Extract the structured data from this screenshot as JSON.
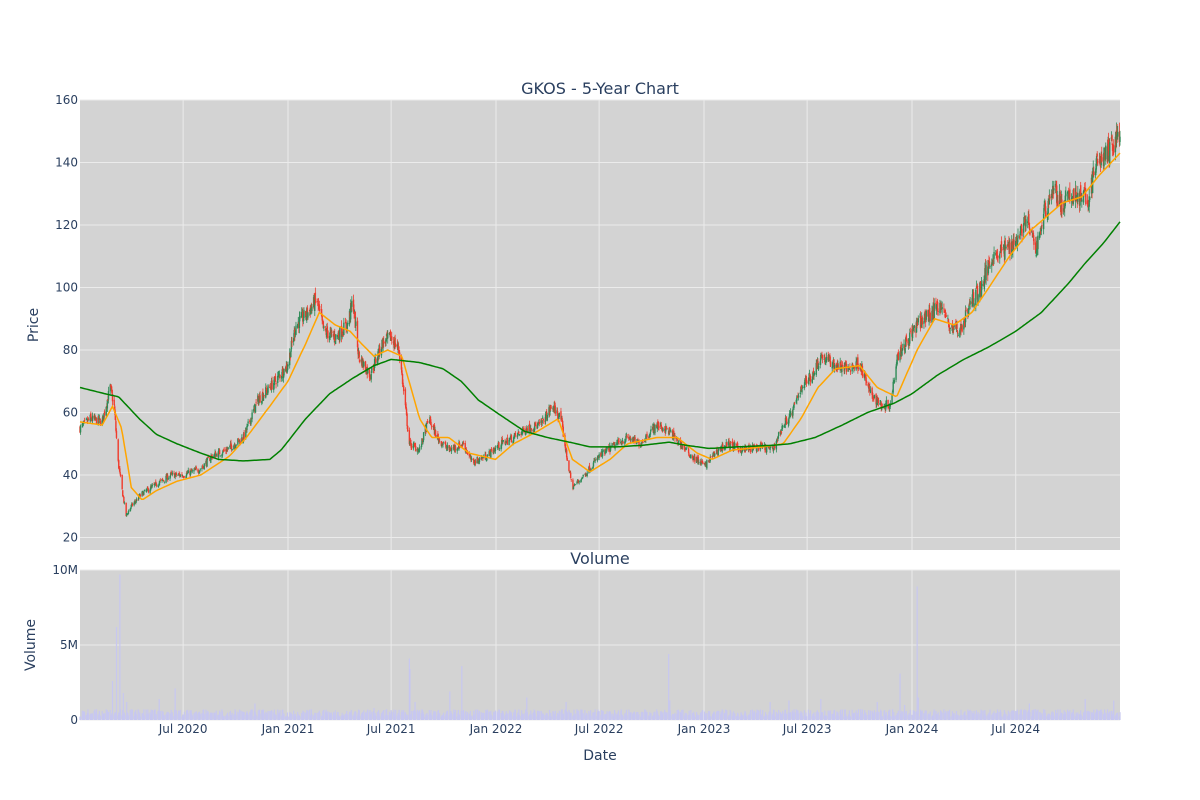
{
  "chart_data": [
    {
      "type": "candlestick",
      "title": "GKOS - 5-Year Chart",
      "ylabel": "Price",
      "ylim": [
        16,
        160
      ],
      "y_ticks": [
        20,
        40,
        60,
        80,
        100,
        120,
        140,
        160
      ],
      "xlim": [
        "2020-01-02",
        "2024-12-31"
      ],
      "grid": true,
      "plot_background": "#d3d3d3",
      "colors": {
        "up": "#2e8b57",
        "down": "#ef3b2c",
        "ma_short": "#ffa500",
        "ma_long": "#008000"
      },
      "close_anchors": [
        [
          "2020-01-02",
          55
        ],
        [
          "2020-01-20",
          58
        ],
        [
          "2020-02-10",
          57
        ],
        [
          "2020-02-24",
          68
        ],
        [
          "2020-03-02",
          62
        ],
        [
          "2020-03-09",
          44
        ],
        [
          "2020-03-16",
          35
        ],
        [
          "2020-03-23",
          27
        ],
        [
          "2020-04-01",
          30
        ],
        [
          "2020-04-20",
          34
        ],
        [
          "2020-05-15",
          37
        ],
        [
          "2020-06-10",
          40
        ],
        [
          "2020-07-01",
          40
        ],
        [
          "2020-08-01",
          42
        ],
        [
          "2020-08-20",
          46
        ],
        [
          "2020-09-15",
          48
        ],
        [
          "2020-10-15",
          52
        ],
        [
          "2020-11-09",
          64
        ],
        [
          "2020-11-30",
          68
        ],
        [
          "2020-12-31",
          75
        ],
        [
          "2021-01-15",
          88
        ],
        [
          "2021-02-05",
          92
        ],
        [
          "2021-02-20",
          96
        ],
        [
          "2021-03-05",
          86
        ],
        [
          "2021-03-25",
          84
        ],
        [
          "2021-04-15",
          88
        ],
        [
          "2021-04-25",
          96
        ],
        [
          "2021-05-05",
          78
        ],
        [
          "2021-05-25",
          72
        ],
        [
          "2021-06-15",
          82
        ],
        [
          "2021-06-30",
          84
        ],
        [
          "2021-07-15",
          80
        ],
        [
          "2021-08-02",
          50
        ],
        [
          "2021-08-20",
          48
        ],
        [
          "2021-09-05",
          58
        ],
        [
          "2021-09-20",
          52
        ],
        [
          "2021-10-10",
          48
        ],
        [
          "2021-11-05",
          50
        ],
        [
          "2021-11-20",
          44
        ],
        [
          "2021-12-15",
          46
        ],
        [
          "2022-01-10",
          50
        ],
        [
          "2022-02-01",
          52
        ],
        [
          "2022-02-25",
          55
        ],
        [
          "2022-03-20",
          56
        ],
        [
          "2022-04-10",
          62
        ],
        [
          "2022-04-25",
          58
        ],
        [
          "2022-05-05",
          46
        ],
        [
          "2022-05-15",
          36
        ],
        [
          "2022-06-05",
          40
        ],
        [
          "2022-07-01",
          46
        ],
        [
          "2022-08-01",
          50
        ],
        [
          "2022-08-20",
          52
        ],
        [
          "2022-09-10",
          50
        ],
        [
          "2022-10-10",
          56
        ],
        [
          "2022-11-01",
          54
        ],
        [
          "2022-11-20",
          50
        ],
        [
          "2022-12-10",
          46
        ],
        [
          "2023-01-03",
          43
        ],
        [
          "2023-01-20",
          47
        ],
        [
          "2023-02-10",
          50
        ],
        [
          "2023-03-10",
          48
        ],
        [
          "2023-04-10",
          49
        ],
        [
          "2023-05-01",
          48
        ],
        [
          "2023-05-20",
          56
        ],
        [
          "2023-06-05",
          60
        ],
        [
          "2023-06-20",
          68
        ],
        [
          "2023-07-10",
          72
        ],
        [
          "2023-07-25",
          78
        ],
        [
          "2023-08-20",
          75
        ],
        [
          "2023-09-10",
          74
        ],
        [
          "2023-10-01",
          76
        ],
        [
          "2023-10-20",
          66
        ],
        [
          "2023-11-10",
          62
        ],
        [
          "2023-11-25",
          63
        ],
        [
          "2023-12-05",
          78
        ],
        [
          "2023-12-20",
          82
        ],
        [
          "2024-01-10",
          88
        ],
        [
          "2024-02-05",
          92
        ],
        [
          "2024-02-20",
          95
        ],
        [
          "2024-03-05",
          88
        ],
        [
          "2024-03-25",
          86
        ],
        [
          "2024-04-15",
          96
        ],
        [
          "2024-05-01",
          100
        ],
        [
          "2024-05-20",
          110
        ],
        [
          "2024-06-10",
          112
        ],
        [
          "2024-07-01",
          115
        ],
        [
          "2024-07-20",
          122
        ],
        [
          "2024-08-05",
          112
        ],
        [
          "2024-08-20",
          124
        ],
        [
          "2024-09-05",
          132
        ],
        [
          "2024-09-20",
          126
        ],
        [
          "2024-10-10",
          130
        ],
        [
          "2024-11-05",
          128
        ],
        [
          "2024-11-20",
          140
        ],
        [
          "2024-12-05",
          142
        ],
        [
          "2024-12-20",
          146
        ],
        [
          "2024-12-31",
          150
        ]
      ],
      "ma_short_anchors": [
        [
          "2020-01-02",
          57
        ],
        [
          "2020-02-10",
          56
        ],
        [
          "2020-02-28",
          62
        ],
        [
          "2020-03-15",
          55
        ],
        [
          "2020-04-01",
          36
        ],
        [
          "2020-04-20",
          32
        ],
        [
          "2020-05-15",
          35
        ],
        [
          "2020-06-20",
          38
        ],
        [
          "2020-08-01",
          40
        ],
        [
          "2020-09-20",
          46
        ],
        [
          "2020-10-20",
          52
        ],
        [
          "2020-11-30",
          62
        ],
        [
          "2021-01-01",
          70
        ],
        [
          "2021-02-01",
          82
        ],
        [
          "2021-02-25",
          92
        ],
        [
          "2021-03-25",
          88
        ],
        [
          "2021-04-20",
          86
        ],
        [
          "2021-05-10",
          82
        ],
        [
          "2021-06-01",
          78
        ],
        [
          "2021-06-25",
          80
        ],
        [
          "2021-07-20",
          78
        ],
        [
          "2021-08-20",
          58
        ],
        [
          "2021-09-10",
          52
        ],
        [
          "2021-10-10",
          52
        ],
        [
          "2021-11-15",
          47
        ],
        [
          "2021-12-31",
          45
        ],
        [
          "2022-02-01",
          50
        ],
        [
          "2022-03-15",
          54
        ],
        [
          "2022-04-20",
          58
        ],
        [
          "2022-05-15",
          45
        ],
        [
          "2022-06-15",
          41
        ],
        [
          "2022-07-20",
          45
        ],
        [
          "2022-08-20",
          50
        ],
        [
          "2022-10-10",
          52
        ],
        [
          "2022-11-15",
          52
        ],
        [
          "2022-12-20",
          47
        ],
        [
          "2023-01-15",
          45
        ],
        [
          "2023-02-20",
          48
        ],
        [
          "2023-04-15",
          49
        ],
        [
          "2023-05-20",
          50
        ],
        [
          "2023-06-20",
          58
        ],
        [
          "2023-07-20",
          68
        ],
        [
          "2023-08-20",
          74
        ],
        [
          "2023-10-01",
          75
        ],
        [
          "2023-11-01",
          68
        ],
        [
          "2023-12-05",
          65
        ],
        [
          "2024-01-10",
          80
        ],
        [
          "2024-02-10",
          90
        ],
        [
          "2024-03-15",
          88
        ],
        [
          "2024-04-15",
          92
        ],
        [
          "2024-05-15",
          100
        ],
        [
          "2024-06-20",
          110
        ],
        [
          "2024-07-25",
          118
        ],
        [
          "2024-08-20",
          122
        ],
        [
          "2024-09-20",
          127
        ],
        [
          "2024-10-25",
          129
        ],
        [
          "2024-11-25",
          136
        ],
        [
          "2024-12-31",
          143
        ]
      ],
      "ma_long_anchors": [
        [
          "2020-01-02",
          68
        ],
        [
          "2020-02-15",
          66
        ],
        [
          "2020-03-10",
          65
        ],
        [
          "2020-04-15",
          58
        ],
        [
          "2020-05-15",
          53
        ],
        [
          "2020-06-20",
          50
        ],
        [
          "2020-08-01",
          47
        ],
        [
          "2020-09-01",
          45
        ],
        [
          "2020-10-15",
          44.5
        ],
        [
          "2020-11-30",
          45
        ],
        [
          "2020-12-20",
          48
        ],
        [
          "2021-02-01",
          58
        ],
        [
          "2021-03-15",
          66
        ],
        [
          "2021-04-25",
          71
        ],
        [
          "2021-06-01",
          75
        ],
        [
          "2021-07-01",
          77
        ],
        [
          "2021-08-20",
          76
        ],
        [
          "2021-09-30",
          74
        ],
        [
          "2021-11-01",
          70
        ],
        [
          "2021-12-01",
          64
        ],
        [
          "2022-01-10",
          59
        ],
        [
          "2022-02-20",
          54
        ],
        [
          "2022-04-01",
          52
        ],
        [
          "2022-05-10",
          50.5
        ],
        [
          "2022-06-15",
          49
        ],
        [
          "2022-08-01",
          49
        ],
        [
          "2022-09-15",
          49.5
        ],
        [
          "2022-11-01",
          50.5
        ],
        [
          "2022-12-01",
          49.5
        ],
        [
          "2023-01-10",
          48.5
        ],
        [
          "2023-03-01",
          49
        ],
        [
          "2023-05-01",
          49.5
        ],
        [
          "2023-06-01",
          50
        ],
        [
          "2023-07-15",
          52
        ],
        [
          "2023-09-01",
          56
        ],
        [
          "2023-10-15",
          60
        ],
        [
          "2023-12-01",
          63
        ],
        [
          "2024-01-01",
          66
        ],
        [
          "2024-02-15",
          72
        ],
        [
          "2024-04-01",
          77
        ],
        [
          "2024-05-15",
          81
        ],
        [
          "2024-07-01",
          86
        ],
        [
          "2024-08-15",
          92
        ],
        [
          "2024-09-30",
          101
        ],
        [
          "2024-11-01",
          108
        ],
        [
          "2024-12-01",
          114
        ],
        [
          "2024-12-31",
          121
        ]
      ]
    },
    {
      "type": "bar",
      "title": "Volume",
      "xlabel": "Date",
      "ylabel": "Volume",
      "ylim": [
        0,
        10000000
      ],
      "y_ticks": [
        0,
        5000000,
        10000000
      ],
      "y_tick_labels": [
        "0",
        "5M",
        "10M"
      ],
      "x_ticks": [
        "2020-07-01",
        "2021-01-01",
        "2021-07-01",
        "2022-01-01",
        "2022-07-01",
        "2023-01-01",
        "2023-07-01",
        "2024-01-01",
        "2024-07-01"
      ],
      "x_tick_labels": [
        "Jul 2020",
        "Jan 2021",
        "Jul 2021",
        "Jan 2022",
        "Jul 2022",
        "Jan 2023",
        "Jul 2023",
        "Jan 2024",
        "Jul 2024"
      ],
      "bar_color": "#c7c7f0",
      "baseline_volume": 450000,
      "spikes": [
        [
          "2020-02-28",
          2600000
        ],
        [
          "2020-03-06",
          6200000
        ],
        [
          "2020-03-12",
          9700000
        ],
        [
          "2020-03-18",
          1800000
        ],
        [
          "2020-03-24",
          1200000
        ],
        [
          "2020-05-20",
          1400000
        ],
        [
          "2020-06-17",
          2100000
        ],
        [
          "2020-11-04",
          1100000
        ],
        [
          "2021-06-01",
          800000
        ],
        [
          "2021-08-02",
          4100000
        ],
        [
          "2021-08-03",
          3400000
        ],
        [
          "2021-08-12",
          1200000
        ],
        [
          "2021-10-12",
          1900000
        ],
        [
          "2021-11-02",
          3600000
        ],
        [
          "2022-02-24",
          1500000
        ],
        [
          "2022-05-04",
          1200000
        ],
        [
          "2022-10-31",
          4400000
        ],
        [
          "2022-11-02",
          1300000
        ],
        [
          "2023-04-27",
          1200000
        ],
        [
          "2023-05-30",
          1300000
        ],
        [
          "2023-07-25",
          1400000
        ],
        [
          "2023-11-01",
          1200000
        ],
        [
          "2023-12-11",
          3100000
        ],
        [
          "2023-12-19",
          1000000
        ],
        [
          "2024-01-10",
          8900000
        ],
        [
          "2024-01-12",
          1500000
        ],
        [
          "2024-07-25",
          1100000
        ],
        [
          "2024-10-31",
          1400000
        ],
        [
          "2024-12-20",
          1300000
        ]
      ]
    }
  ]
}
